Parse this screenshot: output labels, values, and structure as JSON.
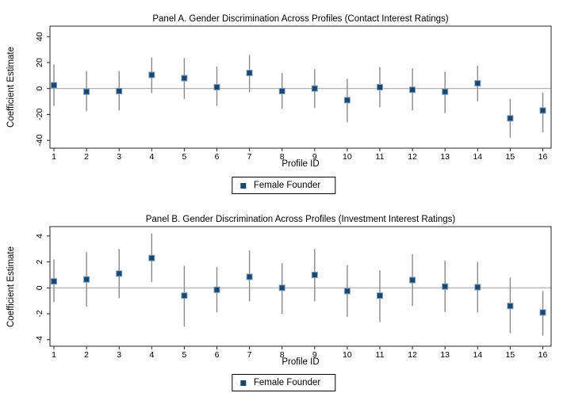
{
  "figure": {
    "background": "#ffffff"
  },
  "colors": {
    "marker": "#1a476f",
    "marker_outline": "#7e9dbd",
    "ci_line": "#8a8a8a",
    "zero_line": "#aaaaaa",
    "axis": "#262626",
    "text": "#000000",
    "legend_border": "#000000"
  },
  "chart_data": [
    {
      "type": "scatter",
      "title": "Panel A. Gender Discrimination Across Profiles (Contact Interest Ratings)",
      "xlabel": "Profile ID",
      "ylabel": "Coefficient Estimate",
      "legend": {
        "label": "Female Founder",
        "position": "bottom-center"
      },
      "grid": false,
      "zero_line": true,
      "ylim": [
        -46,
        48
      ],
      "yticks": [
        40,
        20,
        0,
        -20,
        -40
      ],
      "xticks": [
        1,
        2,
        3,
        4,
        5,
        6,
        7,
        8,
        9,
        10,
        11,
        12,
        13,
        14,
        15,
        16
      ],
      "series": [
        {
          "name": "Female Founder",
          "points": [
            {
              "x": 1,
              "est": 2.5,
              "lo": -13.5,
              "hi": 18.5
            },
            {
              "x": 2,
              "est": -2.5,
              "lo": -17.5,
              "hi": 13.5
            },
            {
              "x": 3,
              "est": -2,
              "lo": -17,
              "hi": 13.5
            },
            {
              "x": 4,
              "est": 10.5,
              "lo": -3.5,
              "hi": 24
            },
            {
              "x": 5,
              "est": 8,
              "lo": -8,
              "hi": 23.5
            },
            {
              "x": 6,
              "est": 1,
              "lo": -13.5,
              "hi": 17
            },
            {
              "x": 7,
              "est": 12,
              "lo": -3,
              "hi": 26
            },
            {
              "x": 8,
              "est": -2,
              "lo": -15.5,
              "hi": 12
            },
            {
              "x": 9,
              "est": 0,
              "lo": -15,
              "hi": 15
            },
            {
              "x": 10,
              "est": -9,
              "lo": -26,
              "hi": 7.5
            },
            {
              "x": 11,
              "est": 1,
              "lo": -14.5,
              "hi": 16.5
            },
            {
              "x": 12,
              "est": -1,
              "lo": -17,
              "hi": 15.5
            },
            {
              "x": 13,
              "est": -2.5,
              "lo": -19,
              "hi": 13
            },
            {
              "x": 14,
              "est": 4,
              "lo": -10,
              "hi": 17.5
            },
            {
              "x": 15,
              "est": -23,
              "lo": -38,
              "hi": -8
            },
            {
              "x": 16,
              "est": -17,
              "lo": -34,
              "hi": -3
            }
          ]
        }
      ]
    },
    {
      "type": "scatter",
      "title": "Panel B. Gender Discrimination Across Profiles (Investment Interest Ratings)",
      "xlabel": "Profile ID",
      "ylabel": "Coefficient Estimate",
      "legend": {
        "label": "Female Founder",
        "position": "bottom-center"
      },
      "grid": false,
      "zero_line": true,
      "ylim": [
        -4.5,
        4.7
      ],
      "yticks": [
        4,
        2,
        0,
        -2,
        -4
      ],
      "xticks": [
        1,
        2,
        3,
        4,
        5,
        6,
        7,
        8,
        9,
        10,
        11,
        12,
        13,
        14,
        15,
        16
      ],
      "series": [
        {
          "name": "Female Founder",
          "points": [
            {
              "x": 1,
              "est": 0.5,
              "lo": -1.1,
              "hi": 2.2
            },
            {
              "x": 2,
              "est": 0.65,
              "lo": -1.45,
              "hi": 2.75
            },
            {
              "x": 3,
              "est": 1.1,
              "lo": -0.8,
              "hi": 3.0
            },
            {
              "x": 4,
              "est": 2.3,
              "lo": 0.45,
              "hi": 4.2
            },
            {
              "x": 5,
              "est": -0.6,
              "lo": -3.0,
              "hi": 1.7
            },
            {
              "x": 6,
              "est": -0.15,
              "lo": -1.9,
              "hi": 1.6
            },
            {
              "x": 7,
              "est": 0.85,
              "lo": -1.05,
              "hi": 2.9
            },
            {
              "x": 8,
              "est": 0,
              "lo": -2.0,
              "hi": 1.9
            },
            {
              "x": 9,
              "est": 1.0,
              "lo": -1.05,
              "hi": 3.0
            },
            {
              "x": 10,
              "est": -0.25,
              "lo": -2.25,
              "hi": 1.75
            },
            {
              "x": 11,
              "est": -0.6,
              "lo": -2.65,
              "hi": 1.35
            },
            {
              "x": 12,
              "est": 0.6,
              "lo": -1.4,
              "hi": 2.6
            },
            {
              "x": 13,
              "est": 0.1,
              "lo": -1.85,
              "hi": 2.1
            },
            {
              "x": 14,
              "est": 0.05,
              "lo": -1.9,
              "hi": 2.0
            },
            {
              "x": 15,
              "est": -1.4,
              "lo": -3.5,
              "hi": 0.8
            },
            {
              "x": 16,
              "est": -1.9,
              "lo": -3.7,
              "hi": -0.25
            }
          ]
        }
      ]
    }
  ]
}
